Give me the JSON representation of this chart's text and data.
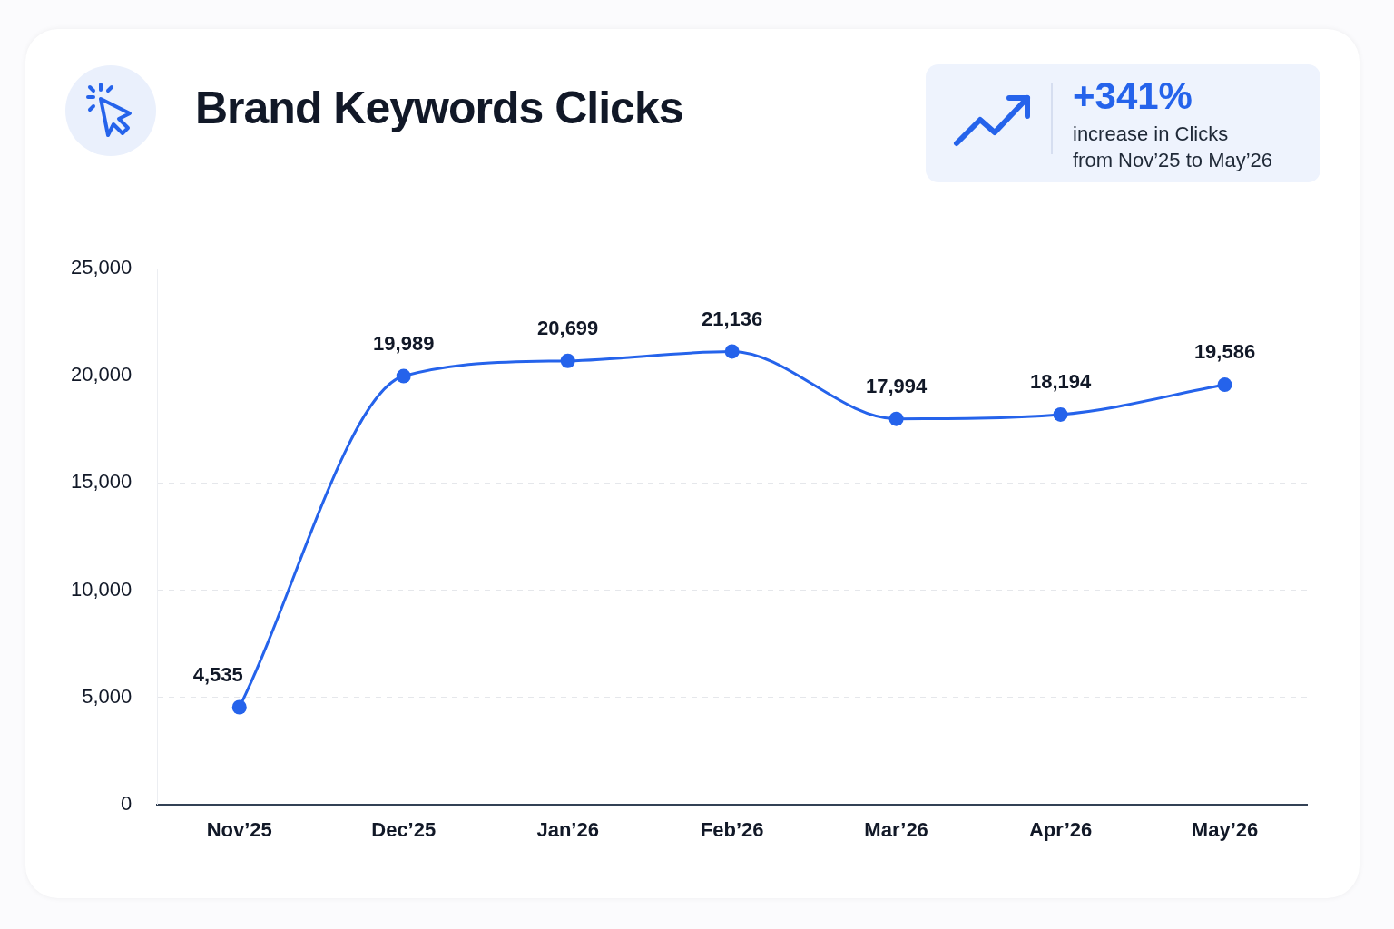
{
  "chart_data": {
    "type": "line",
    "title": "Brand Keywords Clicks",
    "annotations": [
      "+341%",
      "increase in Clicks",
      "from Nov’25 to May’26"
    ],
    "categories": [
      "Nov’25",
      "Dec’25",
      "Jan’26",
      "Feb’26",
      "Mar’26",
      "Apr’26",
      "May’26"
    ],
    "series": [
      {
        "color": "#2563eb",
        "values": [
          4535,
          19989,
          20699,
          21136,
          17994,
          18194,
          19586
        ],
        "value_labels": [
          "4,535",
          "19,989",
          "20,699",
          "21,136",
          "17,994",
          "18,194",
          "19,586"
        ]
      }
    ],
    "ylim": [
      0,
      25000
    ],
    "yticks": [
      0,
      {
        "value": 5000,
        "label": "5,000"
      },
      {
        "value": 10000,
        "label": "10,000"
      },
      {
        "value": 15000,
        "label": "15,000"
      },
      {
        "value": 20000,
        "label": "20,000"
      },
      {
        "value": 25000,
        "label": "25,000"
      }
    ],
    "grid": "y",
    "legend": false,
    "marker": "circle",
    "line_style": "solid"
  }
}
